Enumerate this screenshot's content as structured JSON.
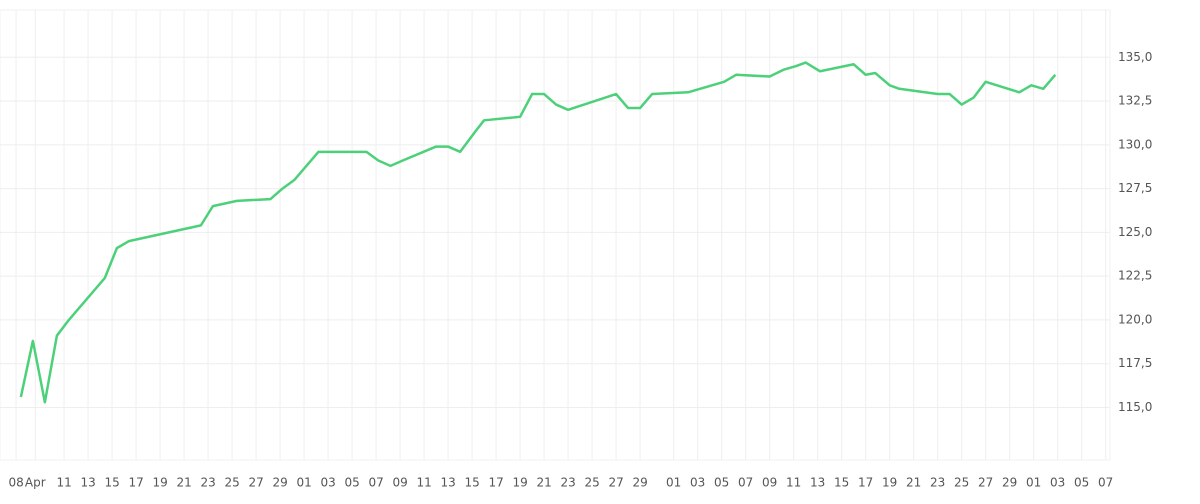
{
  "chart_data": {
    "type": "line",
    "x": [
      0.2,
      0.7,
      1.2,
      1.7,
      2.2,
      3.7,
      4.2,
      4.7,
      7.7,
      8.2,
      9.2,
      10.6,
      11.1,
      11.6,
      12.6,
      14.6,
      15.1,
      15.6,
      16.1,
      17.5,
      18.0,
      18.5,
      19.1,
      19.5,
      21.0,
      21.5,
      22.0,
      22.5,
      23.0,
      25.0,
      25.5,
      26.0,
      26.5,
      28.0,
      29.5,
      30.0,
      31.4,
      32.0,
      32.5,
      32.9,
      33.5,
      34.9,
      35.4,
      35.8,
      36.4,
      36.8,
      38.4,
      38.9,
      39.4,
      39.9,
      40.4,
      41.8,
      42.3,
      42.8,
      43.3
    ],
    "series": [
      {
        "color": "#4cd17a",
        "values": [
          115.6,
          118.8,
          115.3,
          119.1,
          120.0,
          122.4,
          124.1,
          124.5,
          125.4,
          126.5,
          126.8,
          126.9,
          127.5,
          128.0,
          129.6,
          129.6,
          129.1,
          128.8,
          129.1,
          129.9,
          129.9,
          129.6,
          130.7,
          131.4,
          131.6,
          132.9,
          132.9,
          132.3,
          132.0,
          132.9,
          132.1,
          132.1,
          132.9,
          133.0,
          133.6,
          134.0,
          133.9,
          134.3,
          134.5,
          134.7,
          134.2,
          134.6,
          134.0,
          134.1,
          133.4,
          133.2,
          132.9,
          132.9,
          132.3,
          132.7,
          133.6,
          133.0,
          133.4,
          133.2,
          134.0
        ]
      }
    ],
    "xlim": [
      -0.67,
      45.58
    ],
    "xticks": [
      {
        "value": 0,
        "label": "08"
      },
      {
        "value": 0.8,
        "label": "Apr"
      },
      {
        "value": 2,
        "label": "11"
      },
      {
        "value": 3,
        "label": "13"
      },
      {
        "value": 4,
        "label": "15"
      },
      {
        "value": 5,
        "label": "17"
      },
      {
        "value": 6,
        "label": "19"
      },
      {
        "value": 7,
        "label": "21"
      },
      {
        "value": 8,
        "label": "23"
      },
      {
        "value": 9,
        "label": "25"
      },
      {
        "value": 10,
        "label": "27"
      },
      {
        "value": 11,
        "label": "29"
      },
      {
        "value": 12,
        "label": "01"
      },
      {
        "value": 13,
        "label": "03"
      },
      {
        "value": 14,
        "label": "05"
      },
      {
        "value": 15,
        "label": "07"
      },
      {
        "value": 16,
        "label": "09"
      },
      {
        "value": 17,
        "label": "11"
      },
      {
        "value": 18,
        "label": "13"
      },
      {
        "value": 19,
        "label": "15"
      },
      {
        "value": 20,
        "label": "17"
      },
      {
        "value": 21,
        "label": "19"
      },
      {
        "value": 22,
        "label": "21"
      },
      {
        "value": 23,
        "label": "23"
      },
      {
        "value": 24,
        "label": "25"
      },
      {
        "value": 25,
        "label": "27"
      },
      {
        "value": 26,
        "label": "29"
      },
      {
        "value": 27.4,
        "label": "01"
      },
      {
        "value": 28.4,
        "label": "03"
      },
      {
        "value": 29.4,
        "label": "05"
      },
      {
        "value": 30.4,
        "label": "07"
      },
      {
        "value": 31.4,
        "label": "09"
      },
      {
        "value": 32.4,
        "label": "11"
      },
      {
        "value": 33.4,
        "label": "13"
      },
      {
        "value": 34.4,
        "label": "15"
      },
      {
        "value": 35.4,
        "label": "17"
      },
      {
        "value": 36.4,
        "label": "19"
      },
      {
        "value": 37.4,
        "label": "21"
      },
      {
        "value": 38.4,
        "label": "23"
      },
      {
        "value": 39.4,
        "label": "25"
      },
      {
        "value": 40.4,
        "label": "27"
      },
      {
        "value": 41.4,
        "label": "29"
      },
      {
        "value": 42.4,
        "label": "01"
      },
      {
        "value": 43.4,
        "label": "03"
      },
      {
        "value": 44.4,
        "label": "05"
      },
      {
        "value": 45.4,
        "label": "07"
      }
    ],
    "ylim": [
      112,
      137.7
    ],
    "yticks": [
      {
        "value": 115,
        "label": "115,0"
      },
      {
        "value": 117.5,
        "label": "117,5"
      },
      {
        "value": 120,
        "label": "120,0"
      },
      {
        "value": 122.5,
        "label": "122,5"
      },
      {
        "value": 125,
        "label": "125,0"
      },
      {
        "value": 127.5,
        "label": "127,5"
      },
      {
        "value": 130,
        "label": "130,0"
      },
      {
        "value": 132.5,
        "label": "132,5"
      },
      {
        "value": 135,
        "label": "135,0"
      }
    ],
    "grid": true
  }
}
